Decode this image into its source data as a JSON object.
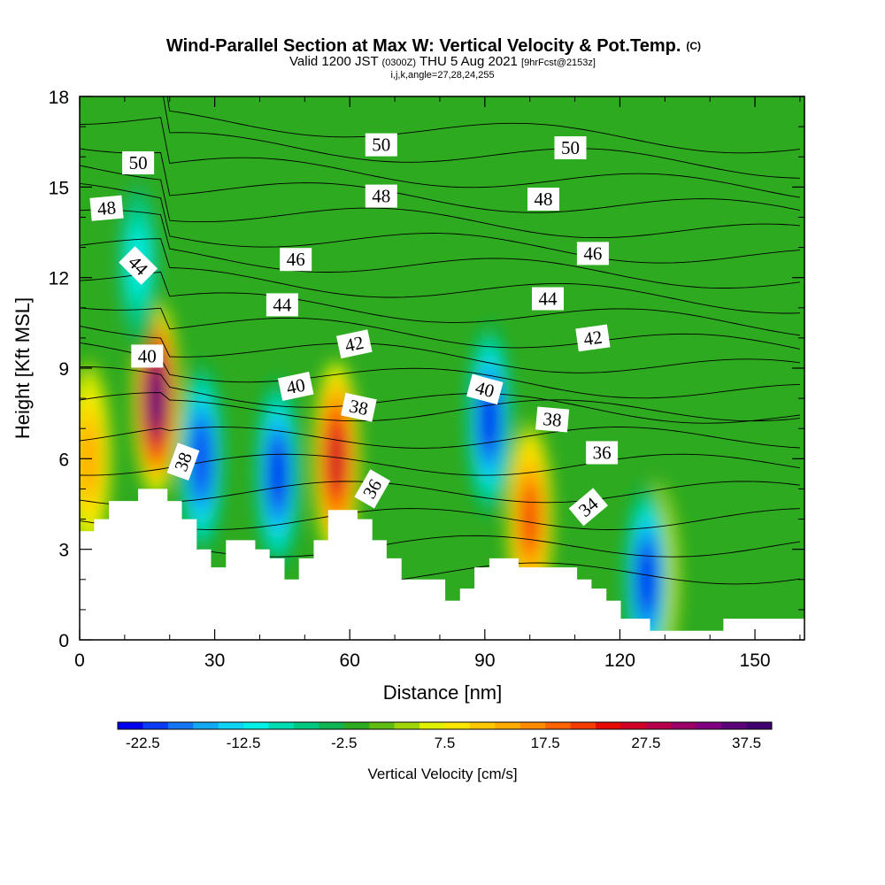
{
  "title": {
    "main": "Wind-Parallel Section at Max W: Vertical Velocity & Pot.Temp.",
    "main_tag": "(C)",
    "valid_prefix": "Valid 1200 JST",
    "valid_z": "(0300Z)",
    "valid_date": "THU 5 Aug 2021",
    "forecast": "[9hrFcst@2153z]",
    "indices": "i,j,k,angle=27,28,24,255"
  },
  "chart_data": {
    "type": "heatmap",
    "xlabel": "Distance [nm]",
    "ylabel": "Height [Kft MSL]",
    "xlim": [
      0,
      161
    ],
    "ylim": [
      0,
      18
    ],
    "x_ticks": [
      0,
      30,
      60,
      90,
      120,
      150
    ],
    "x_tick_labels": [
      "0",
      "30",
      "60",
      "90",
      "120",
      "150"
    ],
    "y_ticks": [
      0,
      3,
      6,
      9,
      12,
      15,
      18
    ],
    "y_tick_labels": [
      "0",
      "3",
      "6",
      "9",
      "12",
      "15",
      "18"
    ],
    "colorbar": {
      "title": "Vertical Velocity [cm/s]",
      "range": [
        -25,
        40
      ],
      "step": 2.5,
      "tick_values": [
        -22.5,
        -12.5,
        -2.5,
        7.5,
        17.5,
        27.5,
        37.5
      ],
      "tick_labels": [
        "-22.5",
        "-12.5",
        "-2.5",
        "7.5",
        "17.5",
        "27.5",
        "37.5"
      ],
      "colors": [
        "#0000ee",
        "#0a3cf5",
        "#1475f5",
        "#12a8f2",
        "#0ed4f5",
        "#00f0e8",
        "#00dcb0",
        "#00c880",
        "#10b450",
        "#2eaa20",
        "#60bc10",
        "#a0d40a",
        "#e0f000",
        "#ffe600",
        "#ffc800",
        "#ffaa00",
        "#ff8c00",
        "#ff6400",
        "#f53c00",
        "#e60a00",
        "#d20028",
        "#b8004a",
        "#9a0066",
        "#800080",
        "#5a0078",
        "#400070"
      ]
    },
    "overlay": "Potential temperature (C) contours, 1 degree interval",
    "contour_labels": [
      {
        "text": "50",
        "x": 13,
        "z": 15.8,
        "angle": 0
      },
      {
        "text": "50",
        "x": 67,
        "z": 16.4,
        "angle": 0
      },
      {
        "text": "50",
        "x": 109,
        "z": 16.3,
        "angle": 0
      },
      {
        "text": "48",
        "x": 6,
        "z": 14.3,
        "angle": -5
      },
      {
        "text": "48",
        "x": 67,
        "z": 14.7,
        "angle": 0
      },
      {
        "text": "48",
        "x": 103,
        "z": 14.6,
        "angle": 0
      },
      {
        "text": "46",
        "x": 48,
        "z": 12.6,
        "angle": 0
      },
      {
        "text": "46",
        "x": 114,
        "z": 12.8,
        "angle": 0
      },
      {
        "text": "44",
        "x": 13,
        "z": 12.4,
        "angle": 45
      },
      {
        "text": "44",
        "x": 45,
        "z": 11.1,
        "angle": 0
      },
      {
        "text": "44",
        "x": 104,
        "z": 11.3,
        "angle": 0
      },
      {
        "text": "42",
        "x": 61,
        "z": 9.8,
        "angle": -12
      },
      {
        "text": "42",
        "x": 114,
        "z": 10.0,
        "angle": -8
      },
      {
        "text": "40",
        "x": 15,
        "z": 9.4,
        "angle": 0
      },
      {
        "text": "40",
        "x": 48,
        "z": 8.4,
        "angle": -12
      },
      {
        "text": "40",
        "x": 90,
        "z": 8.3,
        "angle": 15
      },
      {
        "text": "38",
        "x": 23,
        "z": 5.9,
        "angle": -70
      },
      {
        "text": "38",
        "x": 62,
        "z": 7.7,
        "angle": 12
      },
      {
        "text": "38",
        "x": 105,
        "z": 7.3,
        "angle": 5
      },
      {
        "text": "36",
        "x": 65,
        "z": 5.0,
        "angle": -60
      },
      {
        "text": "36",
        "x": 116,
        "z": 6.2,
        "angle": 0
      },
      {
        "text": "34",
        "x": 113,
        "z": 4.4,
        "angle": -40
      }
    ],
    "terrain_profile": [
      {
        "x": 0,
        "z": 3.6
      },
      {
        "x": 3.2,
        "z": 4.0
      },
      {
        "x": 6.5,
        "z": 4.6
      },
      {
        "x": 13,
        "z": 5.0
      },
      {
        "x": 19.5,
        "z": 4.6
      },
      {
        "x": 22.7,
        "z": 4.0
      },
      {
        "x": 26,
        "z": 3.0
      },
      {
        "x": 29.2,
        "z": 2.4
      },
      {
        "x": 32.5,
        "z": 3.3
      },
      {
        "x": 39,
        "z": 3.0
      },
      {
        "x": 42.2,
        "z": 2.7
      },
      {
        "x": 45.5,
        "z": 2.0
      },
      {
        "x": 48.7,
        "z": 2.7
      },
      {
        "x": 52,
        "z": 3.3
      },
      {
        "x": 55.2,
        "z": 4.3
      },
      {
        "x": 61.7,
        "z": 4.0
      },
      {
        "x": 65,
        "z": 3.3
      },
      {
        "x": 68.2,
        "z": 2.7
      },
      {
        "x": 71.5,
        "z": 2.0
      },
      {
        "x": 78,
        "z": 2.0
      },
      {
        "x": 81.2,
        "z": 1.3
      },
      {
        "x": 84.5,
        "z": 1.7
      },
      {
        "x": 87.7,
        "z": 2.4
      },
      {
        "x": 91,
        "z": 2.7
      },
      {
        "x": 97.5,
        "z": 2.4
      },
      {
        "x": 110.5,
        "z": 2.0
      },
      {
        "x": 113.7,
        "z": 1.7
      },
      {
        "x": 117,
        "z": 1.3
      },
      {
        "x": 120.2,
        "z": 0.7
      },
      {
        "x": 123.5,
        "z": 0.7
      },
      {
        "x": 126.7,
        "z": 0.3
      },
      {
        "x": 143,
        "z": 0.7
      },
      {
        "x": 161,
        "z": 0.7
      }
    ],
    "updraft_cores": [
      {
        "x": 17,
        "z": 8,
        "w": 35
      },
      {
        "x": 57,
        "z": 6,
        "w": 27
      },
      {
        "x": 100,
        "z": 4,
        "w": 20
      },
      {
        "x": 128,
        "z": 2,
        "w": 13
      },
      {
        "x": 2,
        "z": 6,
        "w": 13
      }
    ],
    "downdraft_cores": [
      {
        "x": 27,
        "z": 6,
        "w": -22
      },
      {
        "x": 44,
        "z": 5.5,
        "w": -23
      },
      {
        "x": 91,
        "z": 7.3,
        "w": -24
      },
      {
        "x": 126,
        "z": 2,
        "w": -24
      },
      {
        "x": 13,
        "z": 12.5,
        "w": -12
      }
    ]
  }
}
